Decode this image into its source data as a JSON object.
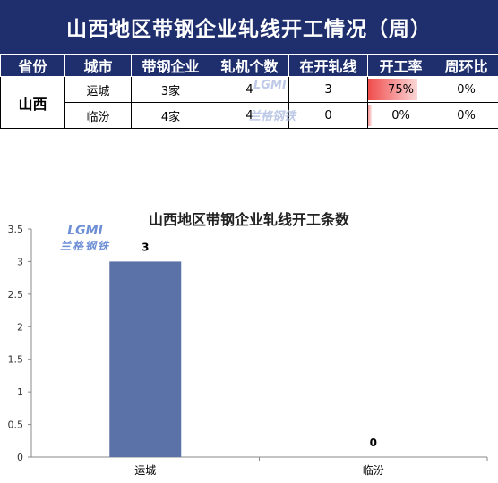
{
  "title": "山西地区带钢企业轧线开工情况（周）",
  "table": {
    "headers": [
      "省份",
      "城市",
      "带钢企业",
      "轧机个数",
      "在开轧线",
      "开工率",
      "周环比"
    ],
    "province": "山西",
    "rows": [
      {
        "city": "运城",
        "companies": "3家",
        "mills": "4",
        "running": "3",
        "rate": "75%",
        "rate_value": 0.75,
        "wow": "0%"
      },
      {
        "city": "临汾",
        "companies": "4家",
        "mills": "4",
        "running": "0",
        "rate": "0%",
        "rate_value": 0.0,
        "wow": "0%"
      }
    ]
  },
  "watermark": {
    "logo": "LGMI",
    "cn": "兰格钢铁"
  },
  "chart_data": {
    "type": "bar",
    "title": "山西地区带钢企业轧线开工条数",
    "categories": [
      "运城",
      "临汾"
    ],
    "values": [
      3,
      0
    ],
    "data_labels": [
      "3",
      "0"
    ],
    "ylim": [
      0,
      3.5
    ],
    "yticks": [
      "0",
      "0.5",
      "1",
      "1.5",
      "2",
      "2.5",
      "3",
      "3.5"
    ],
    "bar_color": "#5a72a8",
    "grid": false
  },
  "colors": {
    "header_bg": "#1f2f6e",
    "rate_fill": "#f04c4c"
  }
}
